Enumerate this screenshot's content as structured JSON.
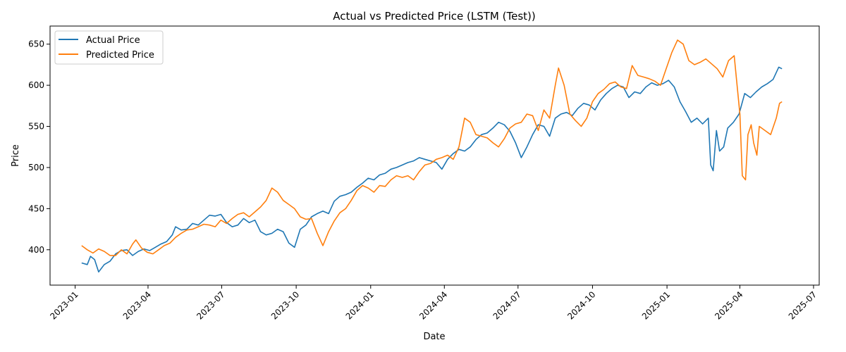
{
  "chart_data": {
    "type": "line",
    "title": "Actual vs Predicted Price (LSTM (Test))",
    "xlabel": "Date",
    "ylabel": "Price",
    "xlim": [
      "2022-12-01",
      "2025-07-08"
    ],
    "ylim": [
      357,
      672
    ],
    "x_ticks": [
      "2023-01",
      "2023-04",
      "2023-07",
      "2023-10",
      "2024-01",
      "2024-04",
      "2024-07",
      "2024-10",
      "2025-01",
      "2025-04",
      "2025-07"
    ],
    "x_tick_dates": [
      "2023-01-01",
      "2023-04-01",
      "2023-07-01",
      "2023-10-01",
      "2024-01-01",
      "2024-04-01",
      "2024-07-01",
      "2024-10-01",
      "2025-01-01",
      "2025-04-01",
      "2025-07-01"
    ],
    "y_ticks": [
      400,
      450,
      500,
      550,
      600,
      650
    ],
    "grid": false,
    "legend": "top-left",
    "series": [
      {
        "name": "Actual Price",
        "color": "#1f77b4",
        "points": [
          [
            "2023-01-09",
            384
          ],
          [
            "2023-01-16",
            382
          ],
          [
            "2023-01-20",
            392
          ],
          [
            "2023-01-25",
            388
          ],
          [
            "2023-01-30",
            373
          ],
          [
            "2023-02-06",
            382
          ],
          [
            "2023-02-13",
            386
          ],
          [
            "2023-02-20",
            395
          ],
          [
            "2023-02-27",
            399
          ],
          [
            "2023-03-06",
            400
          ],
          [
            "2023-03-13",
            393
          ],
          [
            "2023-03-20",
            398
          ],
          [
            "2023-03-27",
            401
          ],
          [
            "2023-04-03",
            399
          ],
          [
            "2023-04-10",
            403
          ],
          [
            "2023-04-17",
            407
          ],
          [
            "2023-04-24",
            410
          ],
          [
            "2023-05-01",
            418
          ],
          [
            "2023-05-05",
            428
          ],
          [
            "2023-05-12",
            424
          ],
          [
            "2023-05-19",
            425
          ],
          [
            "2023-05-26",
            432
          ],
          [
            "2023-06-02",
            430
          ],
          [
            "2023-06-09",
            436
          ],
          [
            "2023-06-16",
            442
          ],
          [
            "2023-06-23",
            441
          ],
          [
            "2023-06-30",
            443
          ],
          [
            "2023-07-07",
            433
          ],
          [
            "2023-07-14",
            428
          ],
          [
            "2023-07-21",
            430
          ],
          [
            "2023-07-28",
            438
          ],
          [
            "2023-08-04",
            433
          ],
          [
            "2023-08-11",
            436
          ],
          [
            "2023-08-18",
            422
          ],
          [
            "2023-08-25",
            418
          ],
          [
            "2023-09-01",
            420
          ],
          [
            "2023-09-08",
            425
          ],
          [
            "2023-09-15",
            422
          ],
          [
            "2023-09-22",
            408
          ],
          [
            "2023-09-29",
            403
          ],
          [
            "2023-10-06",
            425
          ],
          [
            "2023-10-13",
            430
          ],
          [
            "2023-10-20",
            440
          ],
          [
            "2023-10-27",
            444
          ],
          [
            "2023-11-03",
            447
          ],
          [
            "2023-11-10",
            444
          ],
          [
            "2023-11-17",
            459
          ],
          [
            "2023-11-24",
            465
          ],
          [
            "2023-12-01",
            467
          ],
          [
            "2023-12-08",
            470
          ],
          [
            "2023-12-15",
            476
          ],
          [
            "2023-12-22",
            481
          ],
          [
            "2023-12-29",
            487
          ],
          [
            "2024-01-05",
            485
          ],
          [
            "2024-01-12",
            491
          ],
          [
            "2024-01-19",
            493
          ],
          [
            "2024-01-26",
            498
          ],
          [
            "2024-02-02",
            500
          ],
          [
            "2024-02-09",
            503
          ],
          [
            "2024-02-16",
            506
          ],
          [
            "2024-02-23",
            508
          ],
          [
            "2024-03-01",
            512
          ],
          [
            "2024-03-08",
            510
          ],
          [
            "2024-03-15",
            508
          ],
          [
            "2024-03-22",
            506
          ],
          [
            "2024-03-29",
            498
          ],
          [
            "2024-04-05",
            510
          ],
          [
            "2024-04-12",
            517
          ],
          [
            "2024-04-19",
            522
          ],
          [
            "2024-04-26",
            520
          ],
          [
            "2024-05-03",
            525
          ],
          [
            "2024-05-10",
            534
          ],
          [
            "2024-05-17",
            540
          ],
          [
            "2024-05-24",
            542
          ],
          [
            "2024-05-31",
            548
          ],
          [
            "2024-06-07",
            555
          ],
          [
            "2024-06-14",
            552
          ],
          [
            "2024-06-21",
            544
          ],
          [
            "2024-06-28",
            530
          ],
          [
            "2024-07-05",
            512
          ],
          [
            "2024-07-12",
            525
          ],
          [
            "2024-07-19",
            540
          ],
          [
            "2024-07-26",
            552
          ],
          [
            "2024-08-02",
            550
          ],
          [
            "2024-08-09",
            538
          ],
          [
            "2024-08-16",
            560
          ],
          [
            "2024-08-23",
            565
          ],
          [
            "2024-08-30",
            567
          ],
          [
            "2024-09-06",
            563
          ],
          [
            "2024-09-13",
            572
          ],
          [
            "2024-09-20",
            578
          ],
          [
            "2024-09-27",
            576
          ],
          [
            "2024-10-04",
            570
          ],
          [
            "2024-10-11",
            582
          ],
          [
            "2024-10-18",
            590
          ],
          [
            "2024-10-25",
            596
          ],
          [
            "2024-11-01",
            600
          ],
          [
            "2024-11-08",
            598
          ],
          [
            "2024-11-15",
            585
          ],
          [
            "2024-11-22",
            592
          ],
          [
            "2024-11-29",
            590
          ],
          [
            "2024-12-06",
            598
          ],
          [
            "2024-12-13",
            603
          ],
          [
            "2024-12-20",
            600
          ],
          [
            "2024-12-27",
            602
          ],
          [
            "2025-01-03",
            606
          ],
          [
            "2025-01-10",
            598
          ],
          [
            "2025-01-17",
            580
          ],
          [
            "2025-01-24",
            568
          ],
          [
            "2025-01-31",
            555
          ],
          [
            "2025-02-07",
            560
          ],
          [
            "2025-02-14",
            553
          ],
          [
            "2025-02-21",
            560
          ],
          [
            "2025-02-24",
            503
          ],
          [
            "2025-02-27",
            496
          ],
          [
            "2025-03-03",
            545
          ],
          [
            "2025-03-07",
            520
          ],
          [
            "2025-03-12",
            525
          ],
          [
            "2025-03-17",
            548
          ],
          [
            "2025-03-24",
            555
          ],
          [
            "2025-03-31",
            565
          ],
          [
            "2025-04-07",
            590
          ],
          [
            "2025-04-14",
            585
          ],
          [
            "2025-04-21",
            592
          ],
          [
            "2025-04-28",
            598
          ],
          [
            "2025-05-05",
            602
          ],
          [
            "2025-05-12",
            607
          ],
          [
            "2025-05-19",
            622
          ],
          [
            "2025-05-23",
            620
          ]
        ]
      },
      {
        "name": "Predicted Price",
        "color": "#ff7f0e",
        "points": [
          [
            "2023-01-09",
            405
          ],
          [
            "2023-01-16",
            400
          ],
          [
            "2023-01-23",
            396
          ],
          [
            "2023-01-30",
            401
          ],
          [
            "2023-02-06",
            398
          ],
          [
            "2023-02-13",
            393
          ],
          [
            "2023-02-20",
            393
          ],
          [
            "2023-02-27",
            400
          ],
          [
            "2023-03-06",
            395
          ],
          [
            "2023-03-13",
            407
          ],
          [
            "2023-03-17",
            412
          ],
          [
            "2023-03-24",
            402
          ],
          [
            "2023-03-31",
            397
          ],
          [
            "2023-04-07",
            395
          ],
          [
            "2023-04-14",
            400
          ],
          [
            "2023-04-21",
            405
          ],
          [
            "2023-04-28",
            408
          ],
          [
            "2023-05-05",
            415
          ],
          [
            "2023-05-12",
            420
          ],
          [
            "2023-05-19",
            424
          ],
          [
            "2023-05-26",
            425
          ],
          [
            "2023-06-02",
            428
          ],
          [
            "2023-06-09",
            431
          ],
          [
            "2023-06-16",
            430
          ],
          [
            "2023-06-23",
            428
          ],
          [
            "2023-06-30",
            436
          ],
          [
            "2023-07-07",
            432
          ],
          [
            "2023-07-14",
            438
          ],
          [
            "2023-07-21",
            443
          ],
          [
            "2023-07-28",
            445
          ],
          [
            "2023-08-04",
            440
          ],
          [
            "2023-08-11",
            446
          ],
          [
            "2023-08-18",
            452
          ],
          [
            "2023-08-25",
            460
          ],
          [
            "2023-09-01",
            475
          ],
          [
            "2023-09-08",
            470
          ],
          [
            "2023-09-15",
            460
          ],
          [
            "2023-09-22",
            455
          ],
          [
            "2023-09-29",
            450
          ],
          [
            "2023-10-06",
            440
          ],
          [
            "2023-10-13",
            437
          ],
          [
            "2023-10-20",
            438
          ],
          [
            "2023-10-27",
            420
          ],
          [
            "2023-11-03",
            405
          ],
          [
            "2023-11-10",
            422
          ],
          [
            "2023-11-17",
            435
          ],
          [
            "2023-11-24",
            445
          ],
          [
            "2023-12-01",
            450
          ],
          [
            "2023-12-08",
            460
          ],
          [
            "2023-12-15",
            472
          ],
          [
            "2023-12-22",
            478
          ],
          [
            "2023-12-29",
            475
          ],
          [
            "2024-01-05",
            470
          ],
          [
            "2024-01-12",
            478
          ],
          [
            "2024-01-19",
            477
          ],
          [
            "2024-01-26",
            485
          ],
          [
            "2024-02-02",
            490
          ],
          [
            "2024-02-09",
            488
          ],
          [
            "2024-02-16",
            490
          ],
          [
            "2024-02-23",
            485
          ],
          [
            "2024-03-01",
            495
          ],
          [
            "2024-03-08",
            503
          ],
          [
            "2024-03-15",
            505
          ],
          [
            "2024-03-22",
            510
          ],
          [
            "2024-03-29",
            512
          ],
          [
            "2024-04-05",
            515
          ],
          [
            "2024-04-12",
            510
          ],
          [
            "2024-04-19",
            525
          ],
          [
            "2024-04-26",
            560
          ],
          [
            "2024-05-03",
            555
          ],
          [
            "2024-05-10",
            540
          ],
          [
            "2024-05-17",
            538
          ],
          [
            "2024-05-24",
            536
          ],
          [
            "2024-05-31",
            530
          ],
          [
            "2024-06-07",
            525
          ],
          [
            "2024-06-14",
            535
          ],
          [
            "2024-06-21",
            548
          ],
          [
            "2024-06-28",
            553
          ],
          [
            "2024-07-05",
            555
          ],
          [
            "2024-07-12",
            565
          ],
          [
            "2024-07-19",
            563
          ],
          [
            "2024-07-26",
            545
          ],
          [
            "2024-08-02",
            570
          ],
          [
            "2024-08-09",
            560
          ],
          [
            "2024-08-16",
            600
          ],
          [
            "2024-08-20",
            621
          ],
          [
            "2024-08-27",
            600
          ],
          [
            "2024-09-03",
            565
          ],
          [
            "2024-09-10",
            557
          ],
          [
            "2024-09-17",
            550
          ],
          [
            "2024-09-24",
            560
          ],
          [
            "2024-10-01",
            580
          ],
          [
            "2024-10-08",
            590
          ],
          [
            "2024-10-15",
            595
          ],
          [
            "2024-10-22",
            602
          ],
          [
            "2024-10-29",
            604
          ],
          [
            "2024-11-05",
            598
          ],
          [
            "2024-11-12",
            596
          ],
          [
            "2024-11-19",
            624
          ],
          [
            "2024-11-26",
            612
          ],
          [
            "2024-12-03",
            610
          ],
          [
            "2024-12-10",
            608
          ],
          [
            "2024-12-17",
            605
          ],
          [
            "2024-12-24",
            600
          ],
          [
            "2024-12-31",
            620
          ],
          [
            "2025-01-07",
            640
          ],
          [
            "2025-01-14",
            655
          ],
          [
            "2025-01-21",
            650
          ],
          [
            "2025-01-28",
            630
          ],
          [
            "2025-02-04",
            625
          ],
          [
            "2025-02-11",
            628
          ],
          [
            "2025-02-18",
            632
          ],
          [
            "2025-02-25",
            626
          ],
          [
            "2025-03-04",
            620
          ],
          [
            "2025-03-11",
            610
          ],
          [
            "2025-03-18",
            630
          ],
          [
            "2025-03-25",
            636
          ],
          [
            "2025-04-01",
            565
          ],
          [
            "2025-04-04",
            490
          ],
          [
            "2025-04-08",
            485
          ],
          [
            "2025-04-11",
            540
          ],
          [
            "2025-04-15",
            552
          ],
          [
            "2025-04-18",
            530
          ],
          [
            "2025-04-22",
            515
          ],
          [
            "2025-04-25",
            550
          ],
          [
            "2025-05-02",
            545
          ],
          [
            "2025-05-09",
            540
          ],
          [
            "2025-05-16",
            560
          ],
          [
            "2025-05-20",
            578
          ],
          [
            "2025-05-23",
            580
          ]
        ]
      }
    ]
  }
}
